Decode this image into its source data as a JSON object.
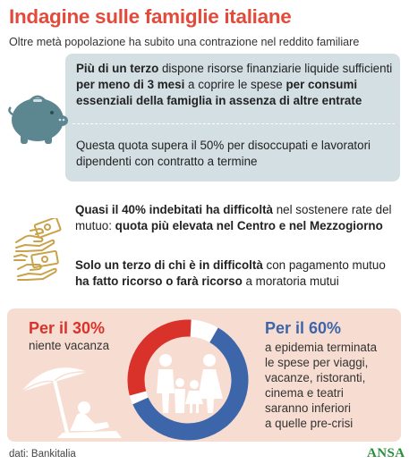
{
  "header": {
    "title": "Indagine sulle famiglie italiane",
    "subtitle": "Oltre metà popolazione ha subito una contrazione nel reddito familiare"
  },
  "block1": {
    "parts": [
      {
        "text": "Più di un terzo",
        "bold": true
      },
      {
        "text": " dispone risorse finanziarie liquide sufficienti ",
        "bold": false
      },
      {
        "text": "per meno di 3 mesi",
        "bold": true
      },
      {
        "text": " a coprire le spese ",
        "bold": false
      },
      {
        "text": "per consumi essenziali della famiglia in assenza di altre entrate",
        "bold": true
      }
    ]
  },
  "block2": {
    "parts": [
      {
        "text": "Questa quota supera il 50% per disoccupati e lavoratori dipendenti con contratto a termine",
        "bold": false
      }
    ]
  },
  "block3": {
    "parts": [
      {
        "text": "Quasi il 40% indebitati ha difficoltà",
        "bold": true
      },
      {
        "text": " nel sostenere rate del mutuo: ",
        "bold": false
      },
      {
        "text": "quota più elevata nel Centro e nel Mezzogiorno",
        "bold": true
      }
    ]
  },
  "block4": {
    "parts": [
      {
        "text": "Solo un terzo di chi è in difficoltà",
        "bold": true
      },
      {
        "text": " con pagamento mutuo ",
        "bold": false
      },
      {
        "text": "ha fatto ricorso o farà ricorso",
        "bold": true
      },
      {
        "text": " a moratoria mutui",
        "bold": false
      }
    ]
  },
  "left_stat": {
    "value": "Per il 30%",
    "caption": "niente vacanza",
    "share": 0.3,
    "color": "#d9322b"
  },
  "right_stat": {
    "value": "Per il 60%",
    "caption_lines": [
      "a epidemia terminata",
      "le spese per viaggi,",
      "vacanze, ristoranti,",
      "cinema e teatri",
      "saranno inferiori",
      "a quelle pre-crisi"
    ],
    "share": 0.6,
    "color": "#3d66aa"
  },
  "colors": {
    "title": "#e24b3b",
    "info_box": "#d4dfe4",
    "bottom_panel": "#f7ddd1",
    "icon": "#c9a24a",
    "piggy": "#5c8790"
  },
  "icons": [
    "piggy-bank-icon",
    "money-handover-icon",
    "money-handover-icon",
    "beach-umbrella-icon",
    "family-icon"
  ],
  "footer": {
    "source": "dati: Bankitalia",
    "logo": "ANSA"
  }
}
